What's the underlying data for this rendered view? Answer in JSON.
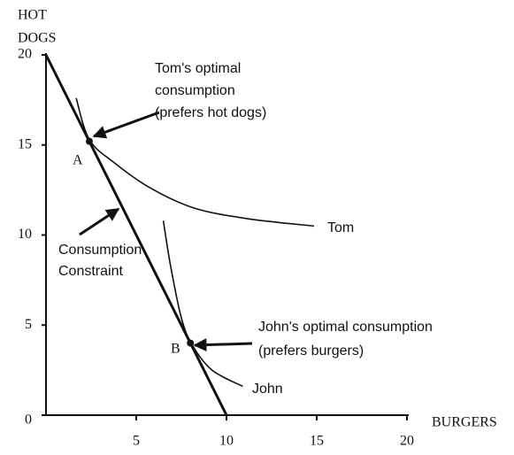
{
  "chart_data": {
    "type": "line",
    "xlabel": [
      "BURGERS"
    ],
    "ylabel": [
      "HOT",
      "DOGS"
    ],
    "xlim": [
      0,
      20
    ],
    "ylim": [
      0,
      20
    ],
    "xticks": [
      5,
      10,
      15,
      20
    ],
    "yticks": [
      0,
      5,
      10,
      15,
      20
    ],
    "color": "#111111",
    "series": [
      {
        "name": "Tom",
        "x": [
          1.67,
          2.4,
          3.8,
          5.8,
          8.2,
          11.2,
          14.85
        ],
        "values": [
          17.6,
          15.3,
          14.0,
          12.6,
          11.5,
          10.9,
          10.5
        ]
      },
      {
        "name": "John",
        "x": [
          6.5,
          6.9,
          7.5,
          8.1,
          9.2,
          10.9
        ],
        "values": [
          10.8,
          8.3,
          5.4,
          3.9,
          2.5,
          1.6
        ]
      },
      {
        "name": "Consumption Constraint",
        "x": [
          0,
          10
        ],
        "values": [
          20,
          0
        ]
      }
    ],
    "points": [
      {
        "label": "A",
        "x": 2.4,
        "y": 15.2
      },
      {
        "label": "B",
        "x": 8,
        "y": 4
      }
    ],
    "annotations": [
      {
        "lines": [
          "Tom's optimal",
          "consumption",
          "(prefers hot dogs)"
        ]
      },
      {
        "lines": [
          "John's optimal consumption",
          "(prefers burgers)"
        ]
      }
    ]
  }
}
